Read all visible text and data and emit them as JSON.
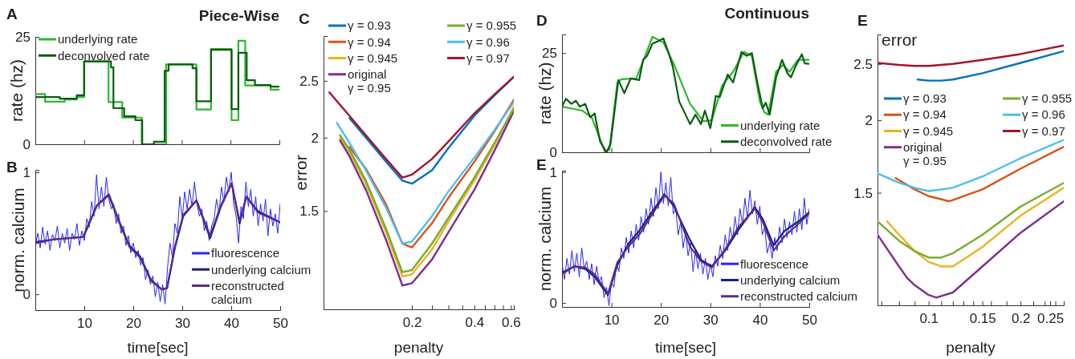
{
  "chart_data": [
    {
      "type": "step",
      "title": "Piece-Wise",
      "ylabel": "rate (hz)",
      "annotations": [
        "A"
      ],
      "xlim": [
        0,
        50
      ],
      "xticks": [
        10,
        20,
        30,
        40,
        50
      ],
      "ylim": [
        0,
        25
      ],
      "yticks": [
        0,
        25
      ],
      "tick_labels": "y",
      "legend": "top left",
      "series": [
        {
          "name": "underlying rate",
          "color": "#2db82d",
          "x": [
            0,
            2,
            6,
            8.5,
            10,
            15,
            17.8,
            21.8,
            26.8,
            33,
            36,
            40.2,
            41.6,
            43,
            48.2,
            50
          ],
          "values": [
            11.7,
            9.9,
            10.4,
            11,
            19.3,
            9.8,
            6.2,
            0,
            18.6,
            8.1,
            22.2,
            5.6,
            24.1,
            13.7,
            12.7,
            12.7
          ]
        },
        {
          "name": "deconvolved rate",
          "color": "#0c5c12",
          "x": [
            0,
            5,
            8.5,
            10,
            15.5,
            16,
            18.2,
            20.5,
            21.9,
            24.3,
            26.5,
            27.3,
            32.2,
            33,
            36,
            40.2,
            41.6,
            43.3,
            45,
            48.2,
            50
          ],
          "values": [
            11,
            10.6,
            11.4,
            19.3,
            17.9,
            8.4,
            6.5,
            5.6,
            0,
            0.6,
            17.1,
            18.6,
            17.7,
            10,
            22,
            8.2,
            21.3,
            14.9,
            13.8,
            13.4,
            13.4
          ]
        }
      ]
    },
    {
      "type": "line",
      "xlabel": "time[sec]",
      "ylabel": "norm. calcium",
      "annotations": [
        "B"
      ],
      "xlim": [
        0,
        50
      ],
      "xticks": [
        10,
        20,
        30,
        40,
        50
      ],
      "ylim": [
        -0.13,
        1.02
      ],
      "yticks": [
        0,
        1
      ],
      "legend": "bottom right",
      "series": [
        {
          "name": "fluorescence",
          "color": "#2626ff",
          "x": [
            0,
            0.5,
            1,
            1.5,
            2,
            2.5,
            3,
            3.5,
            4,
            4.5,
            5,
            5.5,
            6,
            6.5,
            7,
            7.5,
            8,
            8.5,
            9,
            9.5,
            10,
            10.5,
            11,
            11.5,
            12,
            12.5,
            13,
            13.5,
            14,
            14.5,
            15,
            15.5,
            16,
            16.5,
            17,
            17.5,
            18,
            18.5,
            19,
            19.5,
            20,
            20.5,
            21,
            21.5,
            22,
            22.5,
            23,
            23.5,
            24,
            24.5,
            25,
            25.5,
            26,
            26.5,
            27,
            27.5,
            28,
            28.5,
            29,
            29.5,
            30,
            30.5,
            31,
            31.5,
            32,
            32.5,
            33,
            33.5,
            34,
            34.5,
            35,
            35.5,
            36,
            36.5,
            37,
            37.5,
            38,
            38.5,
            39,
            39.5,
            40,
            40.5,
            41,
            41.5,
            42,
            42.5,
            43,
            43.5,
            44,
            44.5,
            45,
            45.5,
            46,
            46.5,
            47,
            47.5,
            48,
            48.5,
            49,
            49.5,
            50
          ],
          "values": [
            0.4,
            0.5,
            0.38,
            0.55,
            0.41,
            0.52,
            0.36,
            0.49,
            0.44,
            0.56,
            0.38,
            0.5,
            0.42,
            0.54,
            0.36,
            0.5,
            0.45,
            0.58,
            0.4,
            0.52,
            0.44,
            0.62,
            0.55,
            0.76,
            0.64,
            0.98,
            0.7,
            0.88,
            0.72,
            0.96,
            0.78,
            0.7,
            0.74,
            0.58,
            0.66,
            0.5,
            0.56,
            0.4,
            0.48,
            0.34,
            0.42,
            0.3,
            0.36,
            0.24,
            0.3,
            0.12,
            0.2,
            0.08,
            0.15,
            -0.02,
            0.1,
            -0.06,
            0.08,
            -0.08,
            0.22,
            0.42,
            0.3,
            0.58,
            0.5,
            0.8,
            0.62,
            0.84,
            0.7,
            0.86,
            0.72,
            0.92,
            0.74,
            0.64,
            0.7,
            0.52,
            0.6,
            0.44,
            0.56,
            0.62,
            0.78,
            0.66,
            0.88,
            0.76,
            0.96,
            0.84,
            1.0,
            0.74,
            0.64,
            0.42,
            0.72,
            0.62,
            0.92,
            0.72,
            0.86,
            0.64,
            0.8,
            0.56,
            0.74,
            0.6,
            0.78,
            0.48,
            0.7,
            0.56,
            0.66,
            0.5,
            0.74
          ]
        },
        {
          "name": "underlying calcium",
          "color": "#1c2277",
          "x": [
            0.2,
            3.8,
            9.8,
            10.9,
            12.6,
            15,
            17,
            19.2,
            21.4,
            23.6,
            25.8,
            26.9,
            28.5,
            30.2,
            32.9,
            35.7,
            37.9,
            40.1,
            41.7,
            43.1,
            45.5,
            50
          ],
          "values": [
            0.43,
            0.45,
            0.47,
            0.57,
            0.73,
            0.82,
            0.61,
            0.4,
            0.31,
            0.12,
            0.04,
            0.05,
            0.38,
            0.64,
            0.77,
            0.46,
            0.72,
            0.91,
            0.58,
            0.8,
            0.68,
            0.59
          ]
        },
        {
          "name": "reconstructed\ncalcium",
          "color": "#5b2b8f",
          "x": [
            0.2,
            3.8,
            9.8,
            10.9,
            12.6,
            15,
            17,
            19.2,
            21.4,
            23.6,
            25.8,
            26.9,
            28.5,
            30.2,
            32.9,
            35.7,
            37.9,
            40.1,
            41.7,
            43.1,
            45.5,
            50
          ],
          "values": [
            0.42,
            0.45,
            0.47,
            0.58,
            0.73,
            0.81,
            0.6,
            0.39,
            0.3,
            0.11,
            0.04,
            0.05,
            0.39,
            0.65,
            0.77,
            0.48,
            0.73,
            0.91,
            0.6,
            0.8,
            0.67,
            0.59
          ]
        }
      ]
    },
    {
      "type": "line",
      "xlabel": "penalty",
      "ylabel": "error",
      "annotations": [
        "C"
      ],
      "log": "xy",
      "xlim": [
        0.075,
        0.62
      ],
      "xticks": [
        0.2,
        {
          "value": 0.25,
          "label": null
        },
        {
          "value": 0.3,
          "label": null
        },
        {
          "value": 0.35,
          "label": null
        },
        0.4,
        {
          "value": 0.45,
          "label": null
        },
        {
          "value": 0.5,
          "label": null
        },
        {
          "value": 0.55,
          "label": null
        },
        0.6
      ],
      "ylim": [
        1.02,
        2.98
      ],
      "yticks": [
        1.5,
        2,
        2.5
      ],
      "legend": "top",
      "series": [
        {
          "name": "γ = 0.93",
          "color": "#0072bd",
          "x": [
            0.1,
            0.12,
            0.15,
            0.18,
            0.2,
            0.25,
            0.3,
            0.4,
            0.5,
            0.62
          ],
          "values": [
            2.16,
            2.0,
            1.82,
            1.69,
            1.67,
            1.76,
            1.92,
            2.18,
            2.36,
            2.54
          ]
        },
        {
          "name": "γ = 0.94",
          "color": "#d95319",
          "x": [
            0.1,
            0.12,
            0.15,
            0.18,
            0.2,
            0.25,
            0.3,
            0.4,
            0.5,
            0.62
          ],
          "values": [
            1.93,
            1.77,
            1.54,
            1.32,
            1.3,
            1.43,
            1.58,
            1.82,
            2.05,
            2.32
          ]
        },
        {
          "name": "γ = 0.945",
          "color": "#edb120",
          "x": [
            0.09,
            0.1,
            0.12,
            0.15,
            0.18,
            0.2,
            0.25,
            0.3,
            0.4,
            0.5,
            0.62
          ],
          "values": [
            2.0,
            1.89,
            1.67,
            1.38,
            1.16,
            1.17,
            1.29,
            1.44,
            1.69,
            1.94,
            2.26
          ]
        },
        {
          "name": "original\nγ = 0.95",
          "color": "#7e2f8e",
          "x": [
            0.09,
            0.1,
            0.12,
            0.15,
            0.18,
            0.2,
            0.25,
            0.3,
            0.4,
            0.5,
            0.62
          ],
          "values": [
            1.98,
            1.86,
            1.63,
            1.34,
            1.12,
            1.13,
            1.24,
            1.38,
            1.63,
            1.9,
            2.22
          ]
        },
        {
          "name": "γ = 0.955",
          "color": "#77ac30",
          "x": [
            0.09,
            0.1,
            0.12,
            0.15,
            0.18,
            0.2,
            0.25,
            0.3,
            0.4,
            0.5,
            0.62
          ],
          "values": [
            2.02,
            1.91,
            1.69,
            1.4,
            1.18,
            1.19,
            1.32,
            1.46,
            1.71,
            1.96,
            2.24
          ]
        },
        {
          "name": "γ = 0.96",
          "color": "#4dbeee",
          "x": [
            0.087,
            0.1,
            0.12,
            0.15,
            0.18,
            0.2,
            0.25,
            0.3,
            0.4,
            0.5,
            0.62
          ],
          "values": [
            2.12,
            1.96,
            1.76,
            1.52,
            1.32,
            1.33,
            1.47,
            1.62,
            1.85,
            2.06,
            2.3
          ]
        },
        {
          "name": "γ = 0.97",
          "color": "#a2142f",
          "x": [
            0.08,
            0.1,
            0.12,
            0.15,
            0.18,
            0.2,
            0.25,
            0.3,
            0.4,
            0.5,
            0.62
          ],
          "values": [
            2.39,
            2.18,
            2.02,
            1.84,
            1.71,
            1.73,
            1.84,
            1.97,
            2.2,
            2.37,
            2.54
          ]
        }
      ]
    },
    {
      "type": "line",
      "title": "Continuous",
      "ylabel": "rate (hz)",
      "annotations": [
        "D"
      ],
      "xlim": [
        0,
        50
      ],
      "xticks": [
        10,
        20,
        30,
        40,
        50
      ],
      "ylim": [
        0,
        29.7
      ],
      "yticks": [
        0,
        25
      ],
      "tick_labels": "y",
      "legend": "bottom right",
      "series": [
        {
          "name": "underlying rate",
          "color": "#2db82d",
          "x": [
            0,
            4.1,
            6,
            7.9,
            8.7,
            9.6,
            11.2,
            12,
            15,
            16.6,
            18.3,
            20.5,
            22.6,
            25.9,
            28.6,
            30.3,
            32.4,
            34.6,
            36.8,
            38.4,
            40,
            40.9,
            41.7,
            43.3,
            44.7,
            46,
            47.7,
            49.9
          ],
          "values": [
            11.5,
            10.5,
            8.8,
            2.7,
            0,
            0.7,
            17.6,
            18.4,
            18.6,
            23.6,
            29.1,
            27.7,
            22.3,
            12.2,
            7.8,
            8.1,
            16.9,
            20.3,
            25.3,
            24.3,
            12.8,
            10.1,
            9.5,
            20.3,
            22,
            20.3,
            23.3,
            23.3
          ]
        },
        {
          "name": "deconvolved rate",
          "color": "#0c5c12",
          "x": [
            0,
            0.8,
            1.9,
            2.8,
            3.6,
            4.7,
            5.7,
            6.6,
            7.7,
            9,
            9.8,
            11.4,
            12.6,
            13.9,
            15.6,
            16.4,
            17.2,
            18.3,
            19.4,
            20.5,
            21.5,
            22.4,
            23.7,
            25.9,
            27,
            28.1,
            28.9,
            30,
            31.1,
            31.9,
            33.5,
            34.6,
            36.3,
            37.3,
            38.4,
            39.5,
            40.6,
            41.2,
            42,
            43.3,
            44.5,
            45.6,
            46.3,
            47.2,
            48.5,
            49.1,
            49.9
          ],
          "values": [
            11.5,
            13.5,
            12.2,
            13,
            11.5,
            12.2,
            8.8,
            9.8,
            2.7,
            0,
            2,
            18.2,
            14.9,
            18.6,
            18.2,
            23.3,
            24.3,
            27.4,
            28,
            28.7,
            25.3,
            21.6,
            12.8,
            7.1,
            9.5,
            7.1,
            10.5,
            6.1,
            14.2,
            13.9,
            19.6,
            17.6,
            25.3,
            24.3,
            25,
            17.6,
            11.1,
            12.5,
            9.5,
            18.9,
            23.3,
            19.9,
            18.9,
            21.6,
            24.7,
            22.4,
            22.3
          ]
        }
      ]
    },
    {
      "type": "line",
      "xlabel": "time[sec]",
      "ylabel": "norm. calcium",
      "annotations": [
        "E"
      ],
      "xlim": [
        0,
        50
      ],
      "xticks": [
        10,
        20,
        30,
        40,
        50
      ],
      "ylim": [
        -0.03,
        1.01
      ],
      "yticks": [
        0,
        1
      ],
      "legend": "bottom right",
      "series": [
        {
          "name": "fluorescence",
          "color": "#2626ff",
          "x": [
            0,
            0.5,
            1,
            1.5,
            2,
            2.5,
            3,
            3.5,
            4,
            4.5,
            5,
            5.5,
            6,
            6.5,
            7,
            7.5,
            8,
            8.5,
            9,
            9.5,
            10,
            10.5,
            11,
            11.5,
            12,
            12.5,
            13,
            13.5,
            14,
            14.5,
            15,
            15.5,
            16,
            16.5,
            17,
            17.5,
            18,
            18.5,
            19,
            19.5,
            20,
            20.5,
            21,
            21.5,
            22,
            22.5,
            23,
            23.5,
            24,
            24.5,
            25,
            25.5,
            26,
            26.5,
            27,
            27.5,
            28,
            28.5,
            29,
            29.5,
            30,
            30.5,
            31,
            31.5,
            32,
            32.5,
            33,
            33.5,
            34,
            34.5,
            35,
            35.5,
            36,
            36.5,
            37,
            37.5,
            38,
            38.5,
            39,
            39.5,
            40,
            40.5,
            41,
            41.5,
            42,
            42.5,
            43,
            43.5,
            44,
            44.5,
            45,
            45.5,
            46,
            46.5,
            47,
            47.5,
            48,
            48.5,
            49,
            49.5,
            50
          ],
          "values": [
            0.3,
            0.18,
            0.34,
            0.22,
            0.4,
            0.24,
            0.38,
            0.2,
            0.42,
            0.26,
            0.32,
            0.18,
            0.3,
            0.14,
            0.28,
            0.16,
            0.2,
            0.04,
            0.12,
            -0.02,
            0.16,
            0.12,
            0.3,
            0.24,
            0.42,
            0.34,
            0.5,
            0.38,
            0.55,
            0.42,
            0.6,
            0.48,
            0.66,
            0.54,
            0.72,
            0.6,
            0.8,
            0.66,
            0.88,
            0.72,
            1.0,
            0.76,
            0.92,
            0.74,
            0.96,
            0.68,
            0.72,
            0.52,
            0.62,
            0.42,
            0.54,
            0.36,
            0.46,
            0.24,
            0.4,
            0.26,
            0.38,
            0.22,
            0.34,
            0.18,
            0.3,
            0.2,
            0.36,
            0.28,
            0.44,
            0.34,
            0.52,
            0.4,
            0.58,
            0.48,
            0.66,
            0.52,
            0.72,
            0.6,
            0.8,
            0.64,
            0.86,
            0.68,
            0.78,
            0.6,
            0.74,
            0.52,
            0.58,
            0.38,
            0.46,
            0.34,
            0.5,
            0.4,
            0.58,
            0.46,
            0.64,
            0.5,
            0.62,
            0.52,
            0.7,
            0.54,
            0.72,
            0.56,
            0.8,
            0.6,
            0.72
          ]
        },
        {
          "name": "underlying calcium",
          "color": "#1c2277",
          "x": [
            0,
            2.5,
            4.7,
            6.6,
            9.3,
            11.2,
            13.4,
            15.6,
            18.3,
            20.7,
            22.6,
            25.9,
            28.1,
            30.3,
            33,
            35.7,
            39,
            40.6,
            42.8,
            45,
            47.7,
            49.9
          ],
          "values": [
            0.23,
            0.28,
            0.26,
            0.2,
            0.06,
            0.29,
            0.45,
            0.55,
            0.7,
            0.83,
            0.74,
            0.48,
            0.33,
            0.28,
            0.4,
            0.56,
            0.73,
            0.64,
            0.44,
            0.55,
            0.62,
            0.69
          ]
        },
        {
          "name": "reconstructed calcium",
          "color": "#5b2b8f",
          "x": [
            0,
            2.5,
            4.7,
            6.6,
            9.3,
            11.2,
            13.4,
            15.6,
            18.3,
            20.7,
            22.6,
            25.9,
            28.1,
            30.3,
            33,
            35.7,
            39,
            40.6,
            42.8,
            45,
            47.7,
            49.9
          ],
          "values": [
            0.22,
            0.28,
            0.27,
            0.22,
            0.07,
            0.31,
            0.43,
            0.52,
            0.68,
            0.82,
            0.76,
            0.43,
            0.32,
            0.27,
            0.41,
            0.58,
            0.72,
            0.62,
            0.4,
            0.51,
            0.6,
            0.68
          ]
        }
      ]
    },
    {
      "type": "line",
      "xlabel": "penalty",
      "ylabel": "error",
      "annotations": [
        "E"
      ],
      "log": "xy",
      "xlim": [
        0.068,
        0.277
      ],
      "xticks": [
        {
          "value": 0.07,
          "label": null
        },
        {
          "value": 0.08,
          "label": null
        },
        {
          "value": 0.09,
          "label": null
        },
        0.1,
        {
          "value": 0.11,
          "label": null
        },
        {
          "value": 0.12,
          "label": null
        },
        {
          "value": 0.13,
          "label": null
        },
        {
          "value": 0.14,
          "label": null
        },
        0.15,
        {
          "value": 0.16,
          "label": null
        },
        {
          "value": 0.18,
          "label": null
        },
        0.2,
        {
          "value": 0.22,
          "label": null
        },
        {
          "value": 0.24,
          "label": null
        },
        0.25,
        {
          "value": 0.26,
          "label": null
        }
      ],
      "ylim": [
        0.96,
        2.81
      ],
      "yticks": [
        1.5,
        2,
        2.5
      ],
      "legend": "left",
      "series": [
        {
          "name": "γ = 0.93",
          "color": "#0072bd",
          "x": [
            0.092,
            0.1,
            0.11,
            0.12,
            0.15,
            0.2,
            0.277
          ],
          "values": [
            2.35,
            2.34,
            2.34,
            2.35,
            2.41,
            2.51,
            2.63
          ]
        },
        {
          "name": "γ = 0.94",
          "color": "#d95319",
          "x": [
            0.078,
            0.09,
            0.1,
            0.117,
            0.15,
            0.2,
            0.277
          ],
          "values": [
            1.59,
            1.52,
            1.48,
            1.45,
            1.52,
            1.65,
            1.8
          ]
        },
        {
          "name": "γ = 0.945",
          "color": "#edb120",
          "x": [
            0.073,
            0.08,
            0.09,
            0.1,
            0.11,
            0.12,
            0.15,
            0.2,
            0.277
          ],
          "values": [
            1.34,
            1.27,
            1.19,
            1.14,
            1.12,
            1.12,
            1.21,
            1.37,
            1.53
          ]
        },
        {
          "name": "original\nγ = 0.95",
          "color": "#7e2f8e",
          "x": [
            0.068,
            0.08,
            0.085,
            0.09,
            0.1,
            0.106,
            0.12,
            0.15,
            0.2,
            0.277
          ],
          "values": [
            1.27,
            1.12,
            1.07,
            1.04,
            1.0,
            0.99,
            1.01,
            1.12,
            1.28,
            1.45
          ]
        },
        {
          "name": "γ = 0.955",
          "color": "#77ac30",
          "x": [
            0.068,
            0.08,
            0.09,
            0.1,
            0.11,
            0.12,
            0.15,
            0.2,
            0.277
          ],
          "values": [
            1.34,
            1.24,
            1.19,
            1.16,
            1.16,
            1.18,
            1.27,
            1.42,
            1.56
          ]
        },
        {
          "name": "γ = 0.96",
          "color": "#4dbeee",
          "x": [
            0.068,
            0.08,
            0.09,
            0.1,
            0.12,
            0.15,
            0.2,
            0.277
          ],
          "values": [
            1.62,
            1.56,
            1.53,
            1.51,
            1.53,
            1.6,
            1.72,
            1.85
          ]
        },
        {
          "name": "γ = 0.97",
          "color": "#a2142f",
          "x": [
            0.068,
            0.08,
            0.09,
            0.1,
            0.12,
            0.15,
            0.2,
            0.277
          ],
          "values": [
            2.51,
            2.49,
            2.48,
            2.48,
            2.5,
            2.54,
            2.6,
            2.69
          ]
        }
      ]
    }
  ]
}
